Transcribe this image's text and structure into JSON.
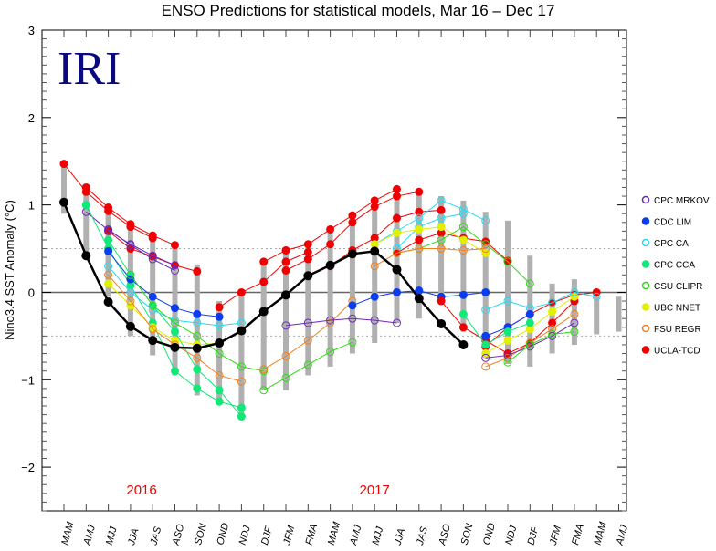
{
  "logo": "IRI",
  "chart_data": {
    "type": "line",
    "title": "ENSO Predictions for statistical models, Mar 16 – Dec 17",
    "xlabel": "",
    "ylabel": "Nino3.4 SST Anomaly (°C)",
    "ylim": [
      -2.5,
      3
    ],
    "yticks": [
      3,
      2,
      1,
      0,
      -1,
      -2
    ],
    "ytick_labels": [
      "3",
      "2",
      "1",
      "0",
      "−1",
      "−2"
    ],
    "reference_lines": [
      0.5,
      -0.5
    ],
    "x": [
      "MAM",
      "AMJ",
      "MJJ",
      "JJA",
      "JAS",
      "ASO",
      "SON",
      "OND",
      "NDJ",
      "DJF",
      "JFM",
      "FMA",
      "MAM",
      "AMJ",
      "MJJ",
      "JJA",
      "JAS",
      "ASO",
      "SON",
      "OND",
      "NDJ",
      "DJF",
      "JFM",
      "FMA",
      "MAM",
      "AMJ"
    ],
    "year_labels": [
      {
        "label": "2016",
        "at_index": 3.5
      },
      {
        "label": "2017",
        "at_index": 14
      }
    ],
    "legend_position": "right",
    "legend": [
      {
        "name": "CPC MRKOV",
        "color": "#6a2ab8",
        "marker": "open"
      },
      {
        "name": "CDC LIM",
        "color": "#0a3cf0",
        "marker": "filled"
      },
      {
        "name": "CPC CA",
        "color": "#28d8f0",
        "marker": "open"
      },
      {
        "name": "CPC CCA",
        "color": "#10e878",
        "marker": "filled"
      },
      {
        "name": "CSU CLIPR",
        "color": "#30d818",
        "marker": "open"
      },
      {
        "name": "UBC NNET",
        "color": "#e0f000",
        "marker": "filled"
      },
      {
        "name": "FSU REGR",
        "color": "#f08020",
        "marker": "open"
      },
      {
        "name": "UCLA-TCD",
        "color": "#f00000",
        "marker": "filled"
      }
    ],
    "observed": {
      "name": "Observed",
      "color": "#000000",
      "start_index": 0,
      "values": [
        1.03,
        0.42,
        -0.11,
        -0.39,
        -0.55,
        -0.63,
        -0.64,
        -0.58,
        -0.44,
        -0.22,
        -0.03,
        0.19,
        0.31,
        0.44,
        0.47,
        0.26,
        -0.07,
        -0.36,
        -0.6
      ]
    },
    "forecasts": [
      {
        "model": "UCLA-TCD",
        "start_index": 0,
        "values": [
          1.47,
          1.15,
          0.93,
          0.75,
          0.62
        ]
      },
      {
        "model": "UCLA-TCD",
        "start_index": 1,
        "values": [
          1.2,
          0.97,
          0.78,
          0.65,
          0.54
        ]
      },
      {
        "model": "UCLA-TCD",
        "start_index": 2,
        "values": [
          0.7,
          0.5,
          0.41,
          0.31,
          0.24
        ]
      },
      {
        "model": "CPC MRKOV",
        "start_index": 1,
        "values": [
          0.92,
          0.71,
          0.55,
          0.42,
          0.31
        ]
      },
      {
        "model": "CPC MRKOV",
        "start_index": 2,
        "values": [
          0.72,
          0.54,
          0.38,
          0.25
        ]
      },
      {
        "model": "CPC CCA",
        "start_index": 1,
        "values": [
          1.0,
          0.5,
          0.08,
          -0.35,
          -0.9,
          -1.1,
          -1.25,
          -1.32
        ]
      },
      {
        "model": "CPC CCA",
        "start_index": 2,
        "values": [
          0.6,
          0.2,
          -0.15,
          -0.45,
          -0.88,
          -1.12,
          -1.42
        ]
      },
      {
        "model": "CDC LIM",
        "start_index": 2,
        "values": [
          0.47,
          0.15,
          -0.05,
          -0.18,
          -0.25,
          -0.28
        ]
      },
      {
        "model": "CPC CA",
        "start_index": 2,
        "values": [
          0.3,
          0.0,
          -0.2,
          -0.32,
          -0.35,
          -0.38,
          -0.35
        ]
      },
      {
        "model": "UBC NNET",
        "start_index": 2,
        "values": [
          0.1,
          -0.15,
          -0.4,
          -0.55,
          -0.6,
          -0.58,
          -0.45
        ]
      },
      {
        "model": "FSU REGR",
        "start_index": 2,
        "values": [
          0.2,
          -0.1,
          -0.42,
          -0.6,
          -0.75,
          -0.95,
          -1.02
        ]
      },
      {
        "model": "CSU CLIPR",
        "start_index": 3,
        "values": [
          0.2,
          -0.15,
          -0.35,
          -0.5,
          -0.7,
          -0.85,
          -0.9
        ]
      },
      {
        "model": "UCLA-TCD",
        "start_index": 7,
        "values": [
          -0.17,
          0.0,
          0.12,
          0.35,
          0.46
        ]
      },
      {
        "model": "UCLA-TCD",
        "start_index": 9,
        "values": [
          0.35,
          0.48,
          0.55,
          0.72,
          0.88,
          1.05,
          1.18
        ]
      },
      {
        "model": "UCLA-TCD",
        "start_index": 10,
        "values": [
          0.25,
          0.38,
          0.55,
          0.8,
          0.98,
          1.1,
          1.15
        ]
      },
      {
        "model": "UCLA-TCD",
        "start_index": 12,
        "values": [
          0.3,
          0.48,
          0.62,
          0.85,
          0.92,
          0.94
        ]
      },
      {
        "model": "CPC CA",
        "start_index": 14,
        "values": [
          0.55,
          0.7,
          0.85,
          1.05,
          0.95,
          0.82
        ]
      },
      {
        "model": "CPC CA",
        "start_index": 15,
        "values": [
          0.5,
          0.75,
          0.85,
          0.9
        ]
      },
      {
        "model": "UCLA-TCD",
        "start_index": 15,
        "values": [
          0.45,
          0.6,
          0.68,
          0.62,
          0.58,
          0.36
        ]
      },
      {
        "model": "UBC NNET",
        "start_index": 14,
        "values": [
          0.55,
          0.68,
          0.72,
          0.75,
          0.6,
          0.45
        ]
      },
      {
        "model": "CSU CLIPR",
        "start_index": 15,
        "values": [
          0.45,
          0.5,
          0.6,
          0.75,
          0.55,
          0.35,
          0.1
        ]
      },
      {
        "model": "FSU REGR",
        "start_index": 14,
        "values": [
          0.3,
          0.45,
          0.5,
          0.5,
          0.48,
          0.5
        ]
      },
      {
        "model": "CSU CLIPR",
        "start_index": 9,
        "values": [
          -1.12,
          -0.98,
          -0.83,
          -0.68,
          -0.57
        ]
      },
      {
        "model": "FSU REGR",
        "start_index": 9,
        "values": [
          -0.88,
          -0.73,
          -0.55,
          -0.35,
          -0.1
        ]
      },
      {
        "model": "CPC MRKOV",
        "start_index": 10,
        "values": [
          -0.38,
          -0.35,
          -0.32,
          -0.3,
          -0.32,
          -0.35
        ]
      },
      {
        "model": "CDC LIM",
        "start_index": 13,
        "values": [
          -0.15,
          -0.05,
          0.0,
          0.02,
          -0.05,
          -0.03,
          0.0
        ]
      },
      {
        "model": "UCLA-TCD",
        "start_index": 17,
        "values": [
          -0.1,
          -0.4,
          -0.55,
          -0.7,
          -0.58,
          -0.35,
          -0.1
        ]
      },
      {
        "model": "UCLA-TCD",
        "start_index": 19,
        "values": [
          -0.62,
          -0.4,
          -0.25,
          -0.12,
          -0.03,
          0.0
        ]
      },
      {
        "model": "UBC NNET",
        "start_index": 19,
        "values": [
          -0.7,
          -0.55,
          -0.42,
          -0.22,
          -0.05
        ]
      },
      {
        "model": "CPC CA",
        "start_index": 19,
        "values": [
          -0.2,
          -0.1,
          -0.18,
          -0.12,
          0.0,
          -0.05
        ]
      },
      {
        "model": "FSU REGR",
        "start_index": 19,
        "values": [
          -0.85,
          -0.75,
          -0.58,
          -0.42,
          -0.25
        ]
      },
      {
        "model": "CPC MRKOV",
        "start_index": 19,
        "values": [
          -0.75,
          -0.72,
          -0.62,
          -0.5,
          -0.35
        ]
      },
      {
        "model": "CSU CLIPR",
        "start_index": 20,
        "values": [
          -0.8,
          -0.6,
          -0.48,
          -0.45
        ]
      },
      {
        "model": "CDC LIM",
        "start_index": 19,
        "values": [
          -0.5,
          -0.4,
          -0.25
        ]
      },
      {
        "model": "CPC CCA",
        "start_index": 18,
        "values": [
          -0.25,
          -0.6,
          -0.45,
          -0.35
        ]
      }
    ],
    "ranges": {
      "color": "#b0b0b0",
      "values": [
        [
          0.9,
          1.47
        ],
        [
          0.38,
          1.2
        ],
        [
          -0.05,
          0.97
        ],
        [
          -0.5,
          0.78
        ],
        [
          -0.72,
          0.65
        ],
        [
          -0.95,
          0.54
        ],
        [
          -1.18,
          0.32
        ],
        [
          -1.28,
          -0.1
        ],
        [
          -1.42,
          0.0
        ],
        [
          -1.12,
          0.35
        ],
        [
          -1.12,
          0.48
        ],
        [
          -0.95,
          0.55
        ],
        [
          -0.85,
          0.72
        ],
        [
          -0.7,
          0.88
        ],
        [
          -0.58,
          1.05
        ],
        [
          -0.35,
          1.1
        ],
        [
          -0.3,
          1.18
        ],
        [
          -0.12,
          1.1
        ],
        [
          -0.45,
          1.05
        ],
        [
          -0.75,
          0.92
        ],
        [
          -0.82,
          0.82
        ],
        [
          -0.85,
          0.42
        ],
        [
          -0.7,
          0.1
        ],
        [
          -0.6,
          0.15
        ],
        [
          -0.48,
          -0.03
        ],
        [
          -0.45,
          -0.05
        ]
      ]
    }
  }
}
